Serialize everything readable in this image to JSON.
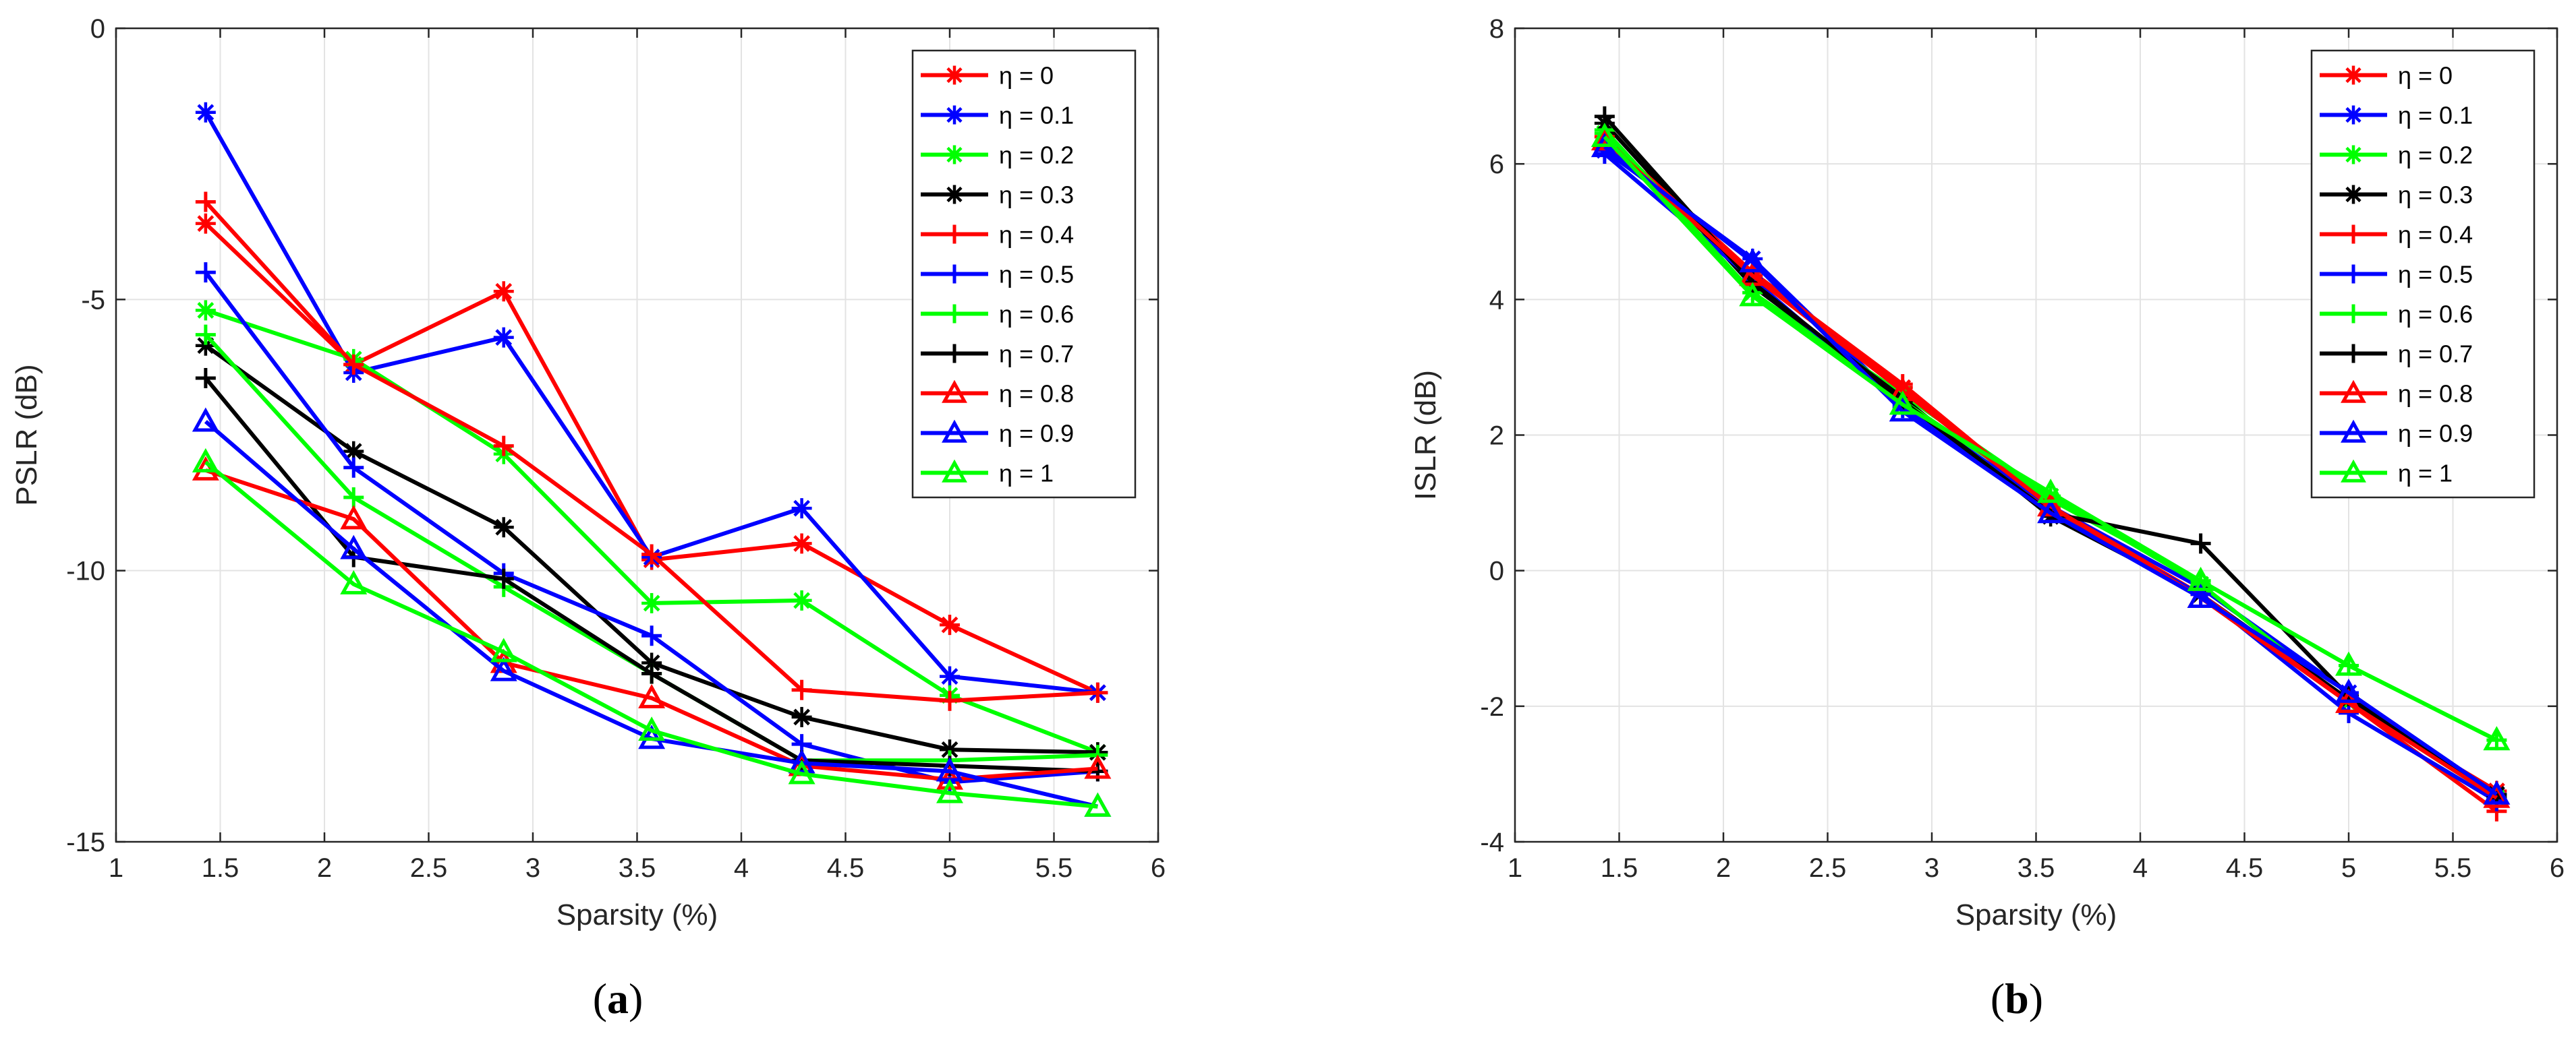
{
  "chart_data": [
    {
      "type": "line",
      "panel_label": "(a)",
      "xlabel": "Sparsity (%)",
      "ylabel": "PSLR (dB)",
      "xlim": [
        1,
        6
      ],
      "ylim": [
        -15,
        0
      ],
      "xticks": [
        1,
        1.5,
        2,
        2.5,
        3,
        3.5,
        4,
        4.5,
        5,
        5.5,
        6
      ],
      "yticks": [
        -15,
        -10,
        -5,
        0
      ],
      "xtick_labels": [
        "1",
        "1.5",
        "2",
        "2.5",
        "3",
        "3.5",
        "4",
        "4.5",
        "5",
        "5.5",
        "6"
      ],
      "ytick_labels": [
        "-15",
        "-10",
        "-5",
        "0"
      ],
      "grid": true,
      "legend_position": "top-right",
      "x": [
        1.43,
        2.14,
        2.86,
        3.57,
        4.29,
        5.0,
        5.71
      ],
      "series": [
        {
          "name": "η = 0",
          "color": "#ff0000",
          "marker": "asterisk",
          "values": [
            -3.6,
            -6.2,
            -4.85,
            -9.8,
            -9.5,
            -11.0,
            -12.25
          ]
        },
        {
          "name": "η = 0.1",
          "color": "#0000ff",
          "marker": "asterisk",
          "values": [
            -1.55,
            -6.35,
            -5.7,
            -9.75,
            -8.85,
            -11.95,
            -12.25
          ]
        },
        {
          "name": "η = 0.2",
          "color": "#00ff00",
          "marker": "asterisk",
          "values": [
            -5.2,
            -6.1,
            -7.85,
            -10.6,
            -10.55,
            -12.3,
            -13.35
          ]
        },
        {
          "name": "η = 0.3",
          "color": "#000000",
          "marker": "asterisk",
          "values": [
            -5.85,
            -7.8,
            -9.2,
            -11.7,
            -12.7,
            -13.3,
            -13.35
          ]
        },
        {
          "name": "η = 0.4",
          "color": "#ff0000",
          "marker": "plus",
          "values": [
            -3.2,
            -6.2,
            -7.7,
            -9.7,
            -12.2,
            -12.4,
            -12.25
          ]
        },
        {
          "name": "η = 0.5",
          "color": "#0000ff",
          "marker": "plus",
          "values": [
            -4.5,
            -8.1,
            -10.05,
            -11.2,
            -13.2,
            -13.9,
            -13.7
          ]
        },
        {
          "name": "η = 0.6",
          "color": "#00ff00",
          "marker": "plus",
          "values": [
            -5.65,
            -8.65,
            -10.3,
            -11.9,
            -13.5,
            -13.5,
            -13.4
          ]
        },
        {
          "name": "η = 0.7",
          "color": "#000000",
          "marker": "plus",
          "values": [
            -6.45,
            -9.75,
            -10.15,
            -11.9,
            -13.5,
            -13.6,
            -13.7
          ]
        },
        {
          "name": "η = 0.8",
          "color": "#ff0000",
          "marker": "triangle",
          "values": [
            -8.15,
            -9.05,
            -11.7,
            -12.35,
            -13.6,
            -13.85,
            -13.65
          ]
        },
        {
          "name": "η = 0.9",
          "color": "#0000ff",
          "marker": "triangle",
          "values": [
            -7.25,
            -9.6,
            -11.85,
            -13.1,
            -13.55,
            -13.7,
            -14.35
          ]
        },
        {
          "name": "η = 1",
          "color": "#00ff00",
          "marker": "triangle",
          "values": [
            -8.0,
            -10.25,
            -11.5,
            -12.95,
            -13.75,
            -14.1,
            -14.35
          ]
        }
      ]
    },
    {
      "type": "line",
      "panel_label": "(b)",
      "xlabel": "Sparsity (%)",
      "ylabel": "ISLR (dB)",
      "xlim": [
        1,
        6
      ],
      "ylim": [
        -4,
        8
      ],
      "xticks": [
        1,
        1.5,
        2,
        2.5,
        3,
        3.5,
        4,
        4.5,
        5,
        5.5,
        6
      ],
      "yticks": [
        -4,
        -2,
        0,
        2,
        4,
        6,
        8
      ],
      "xtick_labels": [
        "1",
        "1.5",
        "2",
        "2.5",
        "3",
        "3.5",
        "4",
        "4.5",
        "5",
        "5.5",
        "6"
      ],
      "ytick_labels": [
        "-4",
        "-2",
        "0",
        "2",
        "4",
        "6",
        "8"
      ],
      "grid": true,
      "legend_position": "top-right",
      "x": [
        1.43,
        2.14,
        2.86,
        3.57,
        4.29,
        5.0,
        5.71
      ],
      "series": [
        {
          "name": "η = 0",
          "color": "#ff0000",
          "marker": "asterisk",
          "values": [
            6.3,
            4.35,
            2.7,
            0.9,
            -0.35,
            -1.95,
            -3.25
          ]
        },
        {
          "name": "η = 0.1",
          "color": "#0000ff",
          "marker": "asterisk",
          "values": [
            6.2,
            4.6,
            2.45,
            0.95,
            -0.25,
            -1.8,
            -3.3
          ]
        },
        {
          "name": "η = 0.2",
          "color": "#00ff00",
          "marker": "asterisk",
          "values": [
            6.45,
            4.1,
            2.6,
            1.1,
            -0.2,
            -1.95,
            -3.35
          ]
        },
        {
          "name": "η = 0.3",
          "color": "#000000",
          "marker": "asterisk",
          "values": [
            6.6,
            4.2,
            2.55,
            0.8,
            -0.35,
            -1.9,
            -3.3
          ]
        },
        {
          "name": "η = 0.4",
          "color": "#ff0000",
          "marker": "plus",
          "values": [
            6.4,
            4.4,
            2.75,
            0.95,
            -0.35,
            -1.95,
            -3.55
          ]
        },
        {
          "name": "η = 0.5",
          "color": "#0000ff",
          "marker": "plus",
          "values": [
            6.15,
            4.3,
            2.4,
            0.85,
            -0.35,
            -2.1,
            -3.4
          ]
        },
        {
          "name": "η = 0.6",
          "color": "#00ff00",
          "marker": "plus",
          "values": [
            6.5,
            4.1,
            2.5,
            1.05,
            -0.15,
            -1.4,
            -2.5
          ]
        },
        {
          "name": "η = 0.7",
          "color": "#000000",
          "marker": "plus",
          "values": [
            6.7,
            4.25,
            2.5,
            0.85,
            0.4,
            -1.85,
            -3.35
          ]
        },
        {
          "name": "η = 0.8",
          "color": "#ff0000",
          "marker": "triangle",
          "values": [
            6.35,
            4.35,
            2.65,
            0.95,
            -0.4,
            -1.95,
            -3.35
          ]
        },
        {
          "name": "η = 0.9",
          "color": "#0000ff",
          "marker": "triangle",
          "values": [
            6.25,
            4.55,
            2.35,
            0.85,
            -0.4,
            -1.8,
            -3.3
          ]
        },
        {
          "name": "η = 1",
          "color": "#00ff00",
          "marker": "triangle",
          "values": [
            6.4,
            4.05,
            2.45,
            1.15,
            -0.15,
            -1.4,
            -2.5
          ]
        }
      ]
    }
  ]
}
